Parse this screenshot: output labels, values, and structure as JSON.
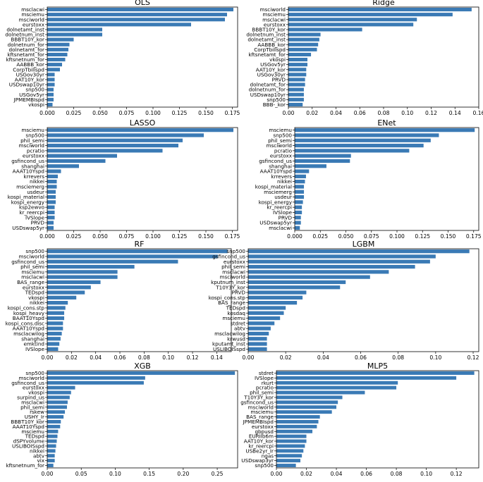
{
  "chart_data": [
    {
      "type": "bar",
      "orientation": "horizontal",
      "title": "OLS",
      "xlim": [
        0,
        0.18
      ],
      "xticks": [
        0,
        0.025,
        0.05,
        0.075,
        0.1,
        0.125,
        0.15,
        0.175
      ],
      "xtick_labels": [
        "0.000",
        "0.025",
        "0.050",
        "0.075",
        "0.100",
        "0.125",
        "0.150",
        "0.175"
      ],
      "categories": [
        "msclacwi",
        "msciemu",
        "msciworld",
        "eurstoxx",
        "dolnetamt_inst",
        "dolnetnum_inst",
        "BBBT10Y_kor",
        "dolnetnum_for",
        "dolnetamt_for",
        "kftsnetamt_for",
        "kftsnetnum_for",
        "AABBB_kor",
        "CorpTbillspd",
        "USGov30yr",
        "AAT10Y_kor",
        "USDswap10yr",
        "snp500",
        "USGov5yr",
        "JPMEMBIspd",
        "vkospi"
      ],
      "values": [
        0.176,
        0.17,
        0.168,
        0.136,
        0.052,
        0.052,
        0.025,
        0.021,
        0.02,
        0.019,
        0.017,
        0.014,
        0.012,
        0.007,
        0.007,
        0.007,
        0.006,
        0.006,
        0.006,
        0.005
      ]
    },
    {
      "type": "bar",
      "orientation": "horizontal",
      "title": "Ridge",
      "xlim": [
        0,
        0.16
      ],
      "xticks": [
        0,
        0.02,
        0.04,
        0.06,
        0.08,
        0.1,
        0.12,
        0.14,
        0.16
      ],
      "xtick_labels": [
        "0.00",
        "0.02",
        "0.04",
        "0.06",
        "0.08",
        "0.10",
        "0.12",
        "0.14",
        "0.16"
      ],
      "categories": [
        "msciworld",
        "msciemu",
        "msclacwi",
        "eurstoxx",
        "BBBT10Y_kor",
        "dolnetnum_inst",
        "dolnetamt_inst",
        "AABBB_kor",
        "CorpTbillspd",
        "kftsnetamt_for",
        "vkospi",
        "USGov5yr",
        "AAT10Y_kor",
        "USGov30yr",
        "PRVD",
        "dolnetamt_for",
        "dolnetnum_for",
        "USDswap10yr",
        "snp500",
        "BBB-_kor"
      ],
      "values": [
        0.154,
        0.138,
        0.108,
        0.105,
        0.062,
        0.027,
        0.026,
        0.025,
        0.024,
        0.019,
        0.016,
        0.016,
        0.015,
        0.015,
        0.014,
        0.014,
        0.013,
        0.013,
        0.013,
        0.012
      ]
    },
    {
      "type": "bar",
      "orientation": "horizontal",
      "title": "LASSO",
      "xlim": [
        0,
        0.18
      ],
      "xticks": [
        0,
        0.025,
        0.05,
        0.075,
        0.1,
        0.125,
        0.15,
        0.175
      ],
      "xtick_labels": [
        "0.000",
        "0.025",
        "0.050",
        "0.075",
        "0.100",
        "0.125",
        "0.150",
        "0.175"
      ],
      "categories": [
        "msciemu",
        "snp500",
        "phil_semi",
        "msciworld",
        "pcratio",
        "eurstoxx",
        "gsfincond_us",
        "shanghai",
        "AAAT10Yspd",
        "krrevers",
        "nikkei",
        "msciemerg",
        "usdeur",
        "kospi_material",
        "kospi_energy",
        "ksp2ewvo",
        "kr_reercpi",
        "IVSlope",
        "PRVD",
        "USDswap5yr"
      ],
      "values": [
        0.176,
        0.148,
        0.128,
        0.124,
        0.109,
        0.066,
        0.055,
        0.03,
        0.013,
        0.01,
        0.009,
        0.009,
        0.008,
        0.008,
        0.008,
        0.007,
        0.007,
        0.007,
        0.006,
        0.006
      ]
    },
    {
      "type": "bar",
      "orientation": "horizontal",
      "title": "ENet",
      "xlim": [
        0,
        0.18
      ],
      "xticks": [
        0,
        0.025,
        0.05,
        0.075,
        0.1,
        0.125,
        0.15,
        0.175
      ],
      "xtick_labels": [
        "0.000",
        "0.025",
        "0.050",
        "0.075",
        "0.100",
        "0.125",
        "0.150",
        "0.175"
      ],
      "categories": [
        "msciemu",
        "snp500",
        "phil_semi",
        "msciworld",
        "pcratio",
        "eurstoxx",
        "gsfincond_us",
        "shanghai",
        "AAAT10Yspd",
        "krrevers",
        "nikkei",
        "kospi_material",
        "msciemerg",
        "usdeur",
        "kospi_energy",
        "kr_reercpi",
        "IVSlope",
        "PRVD",
        "USDswap5yr",
        "msclacwi"
      ],
      "values": [
        0.176,
        0.141,
        0.133,
        0.126,
        0.112,
        0.055,
        0.054,
        0.031,
        0.014,
        0.011,
        0.01,
        0.009,
        0.009,
        0.009,
        0.008,
        0.007,
        0.007,
        0.006,
        0.006,
        0.005
      ]
    },
    {
      "type": "bar",
      "orientation": "horizontal",
      "title": "RF",
      "xlim": [
        0,
        0.152
      ],
      "xticks": [
        0,
        0.02,
        0.04,
        0.06,
        0.08,
        0.1,
        0.12,
        0.14
      ],
      "xtick_labels": [
        "0.00",
        "0.02",
        "0.04",
        "0.06",
        "0.08",
        "0.10",
        "0.12",
        "0.14"
      ],
      "categories": [
        "snp500",
        "msciworld",
        "gsfincond_us",
        "phil_semi",
        "msciemu",
        "msclacwi",
        "BAS_range",
        "eurstoxx",
        "TEDspd",
        "vkospi",
        "nikkei",
        "kospi_cons.stp",
        "kospi_heavy",
        "BAAT10Yspd",
        "kospi_cons.disc",
        "AAAT10Yspd",
        "msclacwilog",
        "shanghai",
        "emktind",
        "IVSlope"
      ],
      "values": [
        0.149,
        0.141,
        0.108,
        0.072,
        0.058,
        0.058,
        0.044,
        0.036,
        0.031,
        0.024,
        0.017,
        0.015,
        0.014,
        0.014,
        0.013,
        0.013,
        0.012,
        0.011,
        0.01,
        0.009
      ]
    },
    {
      "type": "bar",
      "orientation": "horizontal",
      "title": "LGBM",
      "xlim": [
        0,
        0.123
      ],
      "xticks": [
        0,
        0.02,
        0.04,
        0.06,
        0.08,
        0.1,
        0.12
      ],
      "xtick_labels": [
        "0.00",
        "0.02",
        "0.04",
        "0.06",
        "0.08",
        "0.10",
        "0.12"
      ],
      "categories": [
        "snp500",
        "gsfincond_us",
        "eurstoxx",
        "phil_semi",
        "msclacwi",
        "msciworld",
        "kputnum_inst",
        "T10Y3Y_kor",
        "PRVD",
        "kospi_cons.stp",
        "BAS_range",
        "TEDspd",
        "kosdaq",
        "msciemu",
        "stdret",
        "abtv",
        "msclacwilog",
        "krwusd",
        "kputamt_inst",
        "USLIBOISspd"
      ],
      "values": [
        0.118,
        0.1,
        0.097,
        0.089,
        0.075,
        0.065,
        0.052,
        0.049,
        0.031,
        0.029,
        0.026,
        0.02,
        0.019,
        0.017,
        0.014,
        0.012,
        0.011,
        0.01,
        0.01,
        0.01
      ]
    },
    {
      "type": "bar",
      "orientation": "horizontal",
      "title": "XGB",
      "xlim": [
        0,
        0.28
      ],
      "xticks": [
        0,
        0.05,
        0.1,
        0.15,
        0.2,
        0.25
      ],
      "xtick_labels": [
        "0.00",
        "0.05",
        "0.10",
        "0.15",
        "0.20",
        "0.25"
      ],
      "categories": [
        "snp500",
        "msciworld",
        "gsfincond_us",
        "eurstoxx",
        "vkospi",
        "surpind_us",
        "msclacwi",
        "phil_semi",
        "rskew",
        "USHY_Ir",
        "BBBT10Y_kor",
        "AAAT10Yspd",
        "msciemu",
        "TEDspd",
        "dSPYvolume",
        "USLIBOISspd",
        "nikkei",
        "abtv",
        "vix",
        "kftsnetnum_for"
      ],
      "values": [
        0.276,
        0.144,
        0.142,
        0.041,
        0.035,
        0.033,
        0.03,
        0.029,
        0.026,
        0.024,
        0.02,
        0.019,
        0.016,
        0.015,
        0.014,
        0.013,
        0.012,
        0.011,
        0.011,
        0.009
      ]
    },
    {
      "type": "bar",
      "orientation": "horizontal",
      "title": "MLP5",
      "xlim": [
        0,
        0.135
      ],
      "xticks": [
        0,
        0.02,
        0.04,
        0.06,
        0.08,
        0.1,
        0.12
      ],
      "xtick_labels": [
        "0.00",
        "0.02",
        "0.04",
        "0.06",
        "0.08",
        "0.10",
        "0.12"
      ],
      "categories": [
        "stdret",
        "IVSlope",
        "rkurt",
        "pcratio",
        "phil_semi",
        "T10Y3Y_kor",
        "gsfincond_us",
        "msciworld",
        "msciemu",
        "BAS_range",
        "JPMEMBIspd",
        "eurstoxx",
        "gbpusd",
        "EURIIb6m",
        "AAT10Y_kor",
        "kr_reercpi",
        "USBe2yr_Ir",
        "ngas",
        "USDswap3yr",
        "snp500"
      ],
      "values": [
        0.132,
        0.12,
        0.081,
        0.08,
        0.059,
        0.044,
        0.041,
        0.04,
        0.037,
        0.029,
        0.028,
        0.027,
        0.024,
        0.02,
        0.02,
        0.019,
        0.018,
        0.017,
        0.016,
        0.013
      ]
    }
  ]
}
